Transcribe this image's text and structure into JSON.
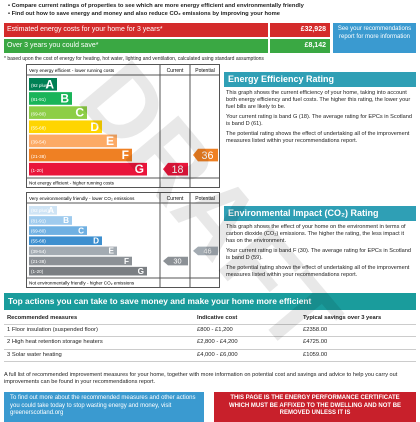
{
  "bullets": [
    "Compare current ratings of properties to see which are more energy efficient and environmentally friendly",
    "Find out how to save energy and money and also reduce CO₂ emissions by improving your home"
  ],
  "costs": {
    "estimate_label": "Estimated energy costs for your home for 3 years*",
    "estimate_value": "£32,928",
    "save_label": "Over 3 years you could save*",
    "save_value": "£8,142",
    "see_note": "See your recommendations report for more information",
    "footnote": "* based upon the cost of energy for heating, hot water, lighting and ventilation, calculated using standard assumptions"
  },
  "energy": {
    "top_label": "Very energy efficient - lower running costs",
    "bottom_label": "Not energy efficient - higher running costs",
    "current_label": "Current",
    "potential_label": "Potential",
    "bands": [
      {
        "range": "(92 plus)",
        "letter": "A",
        "color": "#008054"
      },
      {
        "range": "(81-91)",
        "letter": "B",
        "color": "#19b459"
      },
      {
        "range": "(69-80)",
        "letter": "C",
        "color": "#8dce46"
      },
      {
        "range": "(55-68)",
        "letter": "D",
        "color": "#ffd500"
      },
      {
        "range": "(39-54)",
        "letter": "E",
        "color": "#fcaa65"
      },
      {
        "range": "(21-38)",
        "letter": "F",
        "color": "#ef8023"
      },
      {
        "range": "(1-20)",
        "letter": "G",
        "color": "#e9153b"
      }
    ],
    "current": 18,
    "potential": 36,
    "title": "Energy Efficiency Rating",
    "paragraphs": [
      "This graph shows the current efficiency of your home, taking into account both energy efficiency and fuel costs. The higher this rating, the lower your fuel bills are likely to be.",
      "Your current rating is band G (18). The average rating for EPCs in Scotland is band D (61).",
      "The potential rating shows the effect of undertaking all of the improvement measures listed within your recommendations report."
    ]
  },
  "environment": {
    "top_label": "Very environmentally friendly - lower CO₂ emissions",
    "bottom_label": "Not environmentally friendly - higher CO₂ emissions",
    "current_label": "Current",
    "potential_label": "Potential",
    "bands": [
      {
        "range": "(92 plus)",
        "letter": "A",
        "color": "#cfe4f5"
      },
      {
        "range": "(81-91)",
        "letter": "B",
        "color": "#9fcbee"
      },
      {
        "range": "(69-80)",
        "letter": "C",
        "color": "#6fb0e2"
      },
      {
        "range": "(55-68)",
        "letter": "D",
        "color": "#3d8fcf"
      },
      {
        "range": "(39-54)",
        "letter": "E",
        "color": "#a3abb2"
      },
      {
        "range": "(21-38)",
        "letter": "F",
        "color": "#8c9196"
      },
      {
        "range": "(1-20)",
        "letter": "G",
        "color": "#7b7f83"
      }
    ],
    "current": 30,
    "potential": 46,
    "title": "Environmental Impact (CO₂) Rating",
    "paragraphs": [
      "This graph shows the effect of your home on the environment in terms of carbon dioxide (CO₂) emissions. The higher the rating, the less impact it has on the environment.",
      "Your current rating is band F (30). The average rating for EPCs in Scotland is band D (59).",
      "The potential rating shows the effect of undertaking all of the improvement measures listed within your recommendations report."
    ]
  },
  "actions": {
    "title": "Top actions you can take to save money and make your home more efficient",
    "headers": [
      "Recommended measures",
      "Indicative cost",
      "Typical savings over 3 years"
    ],
    "rows": [
      [
        "1 Floor insulation (suspended floor)",
        "£800 - £1,200",
        "£2358.00"
      ],
      [
        "2 High heat retention storage heaters",
        "£2,800 - £4,200",
        "£4725.00"
      ],
      [
        "3 Solar water heating",
        "£4,000 - £6,000",
        "£1059.00"
      ]
    ],
    "note": "A full list of recommended improvement measures for your home, together with more information on potential cost and savings and advice to help you carry out improvements can be found in your recommendations report."
  },
  "footer": {
    "left": "To find out more about the recommended measures and other actions you could take today to stop wasting energy and money, visit greenerscotland.org",
    "right": "THIS PAGE IS THE ENERGY PERFORMANCE CERTIFICATE WHICH MUST BE AFFIXED TO THE DWELLING AND NOT BE REMOVED UNLESS IT IS"
  },
  "watermark": "DRAFT"
}
